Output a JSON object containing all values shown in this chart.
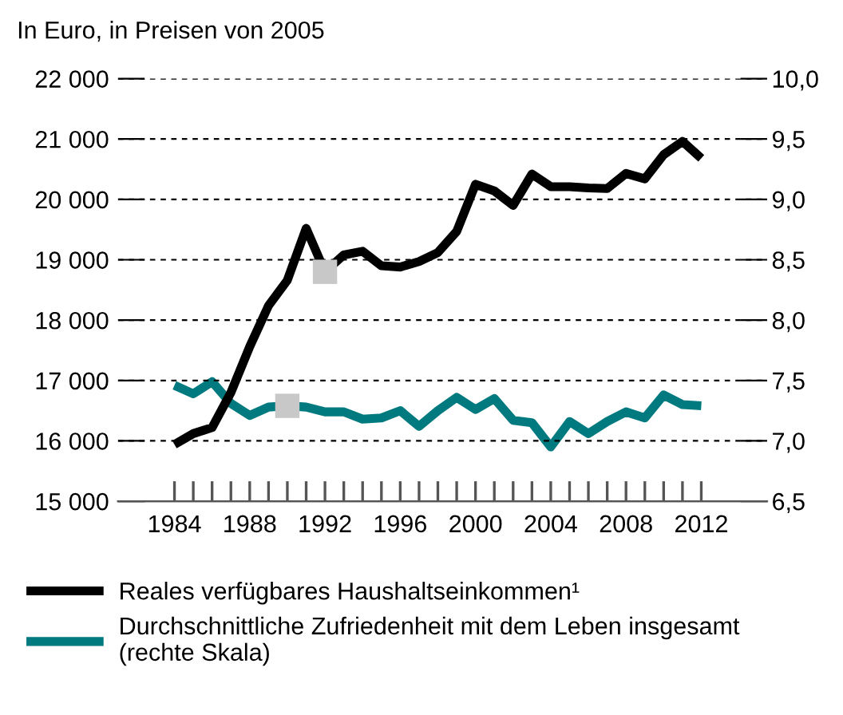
{
  "chart_data": {
    "type": "line",
    "ylabel": "In Euro, in Preisen von 2005",
    "x": [
      1984,
      1985,
      1986,
      1987,
      1988,
      1989,
      1990,
      1991,
      1992,
      1993,
      1994,
      1995,
      1996,
      1997,
      1998,
      1999,
      2000,
      2001,
      2002,
      2003,
      2004,
      2005,
      2006,
      2007,
      2008,
      2009,
      2010,
      2011,
      2012
    ],
    "series": [
      {
        "name": "Reales verfügbares Haushaltseinkommen¹",
        "color": "#000000",
        "axis": "y",
        "values": [
          15940,
          16120,
          16220,
          16800,
          17560,
          18240,
          18660,
          19520,
          18800,
          19080,
          19140,
          18900,
          18880,
          18970,
          19120,
          19470,
          20250,
          20140,
          19900,
          20420,
          20210,
          20210,
          20190,
          20180,
          20430,
          20340,
          20740,
          20960,
          20680
        ]
      },
      {
        "name": "Durchschnittliche Zufriedenheit mit dem Leben insgesamt\n(rechte Skala)",
        "color": "#00797f",
        "axis": "y2",
        "values": [
          7.46,
          7.39,
          7.49,
          7.31,
          7.21,
          7.28,
          7.29,
          7.28,
          7.24,
          7.24,
          7.18,
          7.19,
          7.25,
          7.12,
          7.25,
          7.36,
          7.26,
          7.35,
          7.17,
          7.15,
          6.95,
          7.16,
          7.06,
          7.16,
          7.24,
          7.19,
          7.38,
          7.3,
          7.29
        ]
      },
      {
        "type": "scatter",
        "color": "#c8c8c8",
        "axis": "y2",
        "marker": "square",
        "x": [
          1990
        ],
        "values": [
          7.29
        ]
      },
      {
        "type": "scatter",
        "color": "#c8c8c8",
        "axis": "y",
        "marker": "square",
        "x": [
          1992
        ],
        "values": [
          18800
        ]
      }
    ],
    "xlim": [
      1981,
      2015.5
    ],
    "xticks": [
      1984,
      {
        "value": 1985,
        "label": null
      },
      {
        "value": 1986,
        "label": null
      },
      {
        "value": 1987,
        "label": null
      },
      1988,
      {
        "value": 1989,
        "label": null
      },
      {
        "value": 1990,
        "label": null
      },
      {
        "value": 1991,
        "label": null
      },
      1992,
      {
        "value": 1993,
        "label": null
      },
      {
        "value": 1994,
        "label": null
      },
      {
        "value": 1995,
        "label": null
      },
      1996,
      {
        "value": 1997,
        "label": null
      },
      {
        "value": 1998,
        "label": null
      },
      {
        "value": 1999,
        "label": null
      },
      2000,
      {
        "value": 2001,
        "label": null
      },
      {
        "value": 2002,
        "label": null
      },
      {
        "value": 2003,
        "label": null
      },
      2004,
      {
        "value": 2005,
        "label": null
      },
      {
        "value": 2006,
        "label": null
      },
      {
        "value": 2007,
        "label": null
      },
      2008,
      {
        "value": 2009,
        "label": null
      },
      {
        "value": 2010,
        "label": null
      },
      {
        "value": 2011,
        "label": null
      },
      2012
    ],
    "ylim": [
      15000,
      22000
    ],
    "yticks": [
      {
        "value": 15000,
        "label": "15 000"
      },
      {
        "value": 16000,
        "label": "16 000"
      },
      {
        "value": 17000,
        "label": "17 000"
      },
      {
        "value": 18000,
        "label": "18 000"
      },
      {
        "value": 19000,
        "label": "19 000"
      },
      {
        "value": 20000,
        "label": "20 000"
      },
      {
        "value": 21000,
        "label": "21 000"
      },
      {
        "value": 22000,
        "label": "22 000"
      }
    ],
    "y2lim": [
      6.5,
      10
    ],
    "y2ticks": [
      {
        "value": 6.5,
        "label": "6,5"
      },
      {
        "value": 7,
        "label": "7,0"
      },
      {
        "value": 7.5,
        "label": "7,5"
      },
      {
        "value": 8,
        "label": "8,0"
      },
      {
        "value": 8.5,
        "label": "8,5"
      },
      {
        "value": 9,
        "label": "9,0"
      },
      {
        "value": 9.5,
        "label": "9,5"
      },
      {
        "value": 10,
        "label": "10,0"
      }
    ],
    "grid": "y",
    "legend": "bottom",
    "marker": "none",
    "line_style": "solid"
  }
}
